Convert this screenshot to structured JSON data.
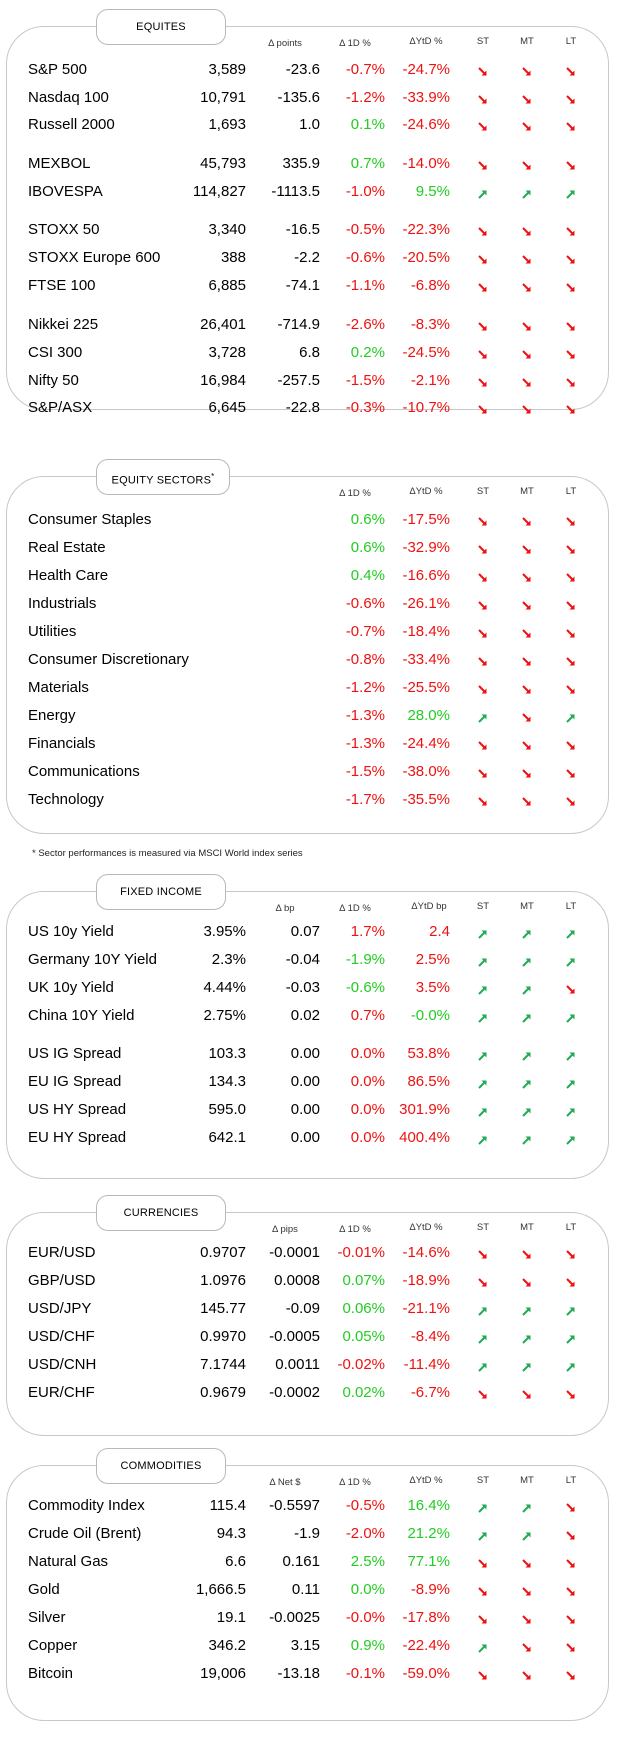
{
  "equities": {
    "title": "EQUITES",
    "headers": {
      "d_points": "Δ points",
      "d_1d": "Δ 1D %",
      "d_ytd": "ΔYtD %",
      "st": "ST",
      "mt": "MT",
      "lt": "LT"
    },
    "rows": [
      {
        "name": "S&P 500",
        "value": "3,589",
        "delta": "-23.6",
        "d1d": "-0.7%",
        "ytd": "-24.7%",
        "st": "down",
        "mt": "down",
        "lt": "down"
      },
      {
        "name": "Nasdaq 100",
        "value": "10,791",
        "delta": "-135.6",
        "d1d": "-1.2%",
        "ytd": "-33.9%",
        "st": "down",
        "mt": "down",
        "lt": "down"
      },
      {
        "name": "Russell 2000",
        "value": "1,693",
        "delta": "1.0",
        "d1d": "0.1%",
        "ytd": "-24.6%",
        "st": "down",
        "mt": "down",
        "lt": "down"
      },
      {
        "name": "MEXBOL",
        "value": "45,793",
        "delta": "335.9",
        "d1d": "0.7%",
        "ytd": "-14.0%",
        "st": "down",
        "mt": "down",
        "lt": "down"
      },
      {
        "name": "IBOVESPA",
        "value": "114,827",
        "delta": "-1113.5",
        "d1d": "-1.0%",
        "ytd": "9.5%",
        "st": "up",
        "mt": "up",
        "lt": "up"
      },
      {
        "name": "STOXX 50",
        "value": "3,340",
        "delta": "-16.5",
        "d1d": "-0.5%",
        "ytd": "-22.3%",
        "st": "down",
        "mt": "down",
        "lt": "down"
      },
      {
        "name": "STOXX Europe 600",
        "value": "388",
        "delta": "-2.2",
        "d1d": "-0.6%",
        "ytd": "-20.5%",
        "st": "down",
        "mt": "down",
        "lt": "down"
      },
      {
        "name": "FTSE 100",
        "value": "6,885",
        "delta": "-74.1",
        "d1d": "-1.1%",
        "ytd": "-6.8%",
        "st": "down",
        "mt": "down",
        "lt": "down"
      },
      {
        "name": "Nikkei 225",
        "value": "26,401",
        "delta": "-714.9",
        "d1d": "-2.6%",
        "ytd": "-8.3%",
        "st": "down",
        "mt": "down",
        "lt": "down"
      },
      {
        "name": "CSI 300",
        "value": "3,728",
        "delta": "6.8",
        "d1d": "0.2%",
        "ytd": "-24.5%",
        "st": "down",
        "mt": "down",
        "lt": "down"
      },
      {
        "name": "Nifty 50",
        "value": "16,984",
        "delta": "-257.5",
        "d1d": "-1.5%",
        "ytd": "-2.1%",
        "st": "down",
        "mt": "down",
        "lt": "down"
      },
      {
        "name": "S&P/ASX",
        "value": "6,645",
        "delta": "-22.8",
        "d1d": "-0.3%",
        "ytd": "-10.7%",
        "st": "down",
        "mt": "down",
        "lt": "down"
      }
    ]
  },
  "sectors": {
    "title": "EQUITY SECTORS",
    "title_mark": "*",
    "headers": {
      "d_1d": "Δ 1D %",
      "d_ytd": "ΔYtD %",
      "st": "ST",
      "mt": "MT",
      "lt": "LT"
    },
    "rows": [
      {
        "name": "Consumer Staples",
        "d1d": "0.6%",
        "ytd": "-17.5%",
        "st": "down",
        "mt": "down",
        "lt": "down"
      },
      {
        "name": "Real Estate",
        "d1d": "0.6%",
        "ytd": "-32.9%",
        "st": "down",
        "mt": "down",
        "lt": "down"
      },
      {
        "name": "Health Care",
        "d1d": "0.4%",
        "ytd": "-16.6%",
        "st": "down",
        "mt": "down",
        "lt": "down"
      },
      {
        "name": "Industrials",
        "d1d": "-0.6%",
        "ytd": "-26.1%",
        "st": "down",
        "mt": "down",
        "lt": "down"
      },
      {
        "name": "Utilities",
        "d1d": "-0.7%",
        "ytd": "-18.4%",
        "st": "down",
        "mt": "down",
        "lt": "down"
      },
      {
        "name": "Consumer Discretionary",
        "d1d": "-0.8%",
        "ytd": "-33.4%",
        "st": "down",
        "mt": "down",
        "lt": "down"
      },
      {
        "name": "Materials",
        "d1d": "-1.2%",
        "ytd": "-25.5%",
        "st": "down",
        "mt": "down",
        "lt": "down"
      },
      {
        "name": "Energy",
        "d1d": "-1.3%",
        "ytd": "28.0%",
        "st": "up",
        "mt": "down",
        "lt": "up"
      },
      {
        "name": "Financials",
        "d1d": "-1.3%",
        "ytd": "-24.4%",
        "st": "down",
        "mt": "down",
        "lt": "down"
      },
      {
        "name": "Communications",
        "d1d": "-1.5%",
        "ytd": "-38.0%",
        "st": "down",
        "mt": "down",
        "lt": "down"
      },
      {
        "name": "Technology",
        "d1d": "-1.7%",
        "ytd": "-35.5%",
        "st": "down",
        "mt": "down",
        "lt": "down"
      }
    ],
    "footnote": "* Sector performances is measured via MSCI World index series"
  },
  "fixed_income": {
    "title": "FIXED INCOME",
    "headers": {
      "d_points": "Δ bp",
      "d_1d": "Δ 1D %",
      "d_ytd": "ΔYtD bp",
      "st": "ST",
      "mt": "MT",
      "lt": "LT"
    },
    "rows": [
      {
        "name": "US 10y Yield",
        "value": "3.95%",
        "delta": "0.07",
        "d1d": "1.7%",
        "ytd": "2.4",
        "st": "up",
        "mt": "up",
        "lt": "up",
        "d1d_color": "neg",
        "ytd_color": "neg"
      },
      {
        "name": "Germany 10Y Yield",
        "value": "2.3%",
        "delta": "-0.04",
        "d1d": "-1.9%",
        "ytd": "2.5%",
        "st": "up",
        "mt": "up",
        "lt": "up",
        "d1d_color": "pos",
        "ytd_color": "neg"
      },
      {
        "name": "UK 10y Yield",
        "value": "4.44%",
        "delta": "-0.03",
        "d1d": "-0.6%",
        "ytd": "3.5%",
        "st": "up",
        "mt": "up",
        "lt": "down",
        "d1d_color": "pos",
        "ytd_color": "neg"
      },
      {
        "name": "China 10Y Yield",
        "value": "2.75%",
        "delta": "0.02",
        "d1d": "0.7%",
        "ytd": "-0.0%",
        "st": "up",
        "mt": "up",
        "lt": "up",
        "d1d_color": "neg",
        "ytd_color": "pos"
      },
      {
        "name": "US IG Spread",
        "value": "103.3",
        "delta": "0.00",
        "d1d": "0.0%",
        "ytd": "53.8%",
        "st": "up",
        "mt": "up",
        "lt": "up",
        "d1d_color": "neg",
        "ytd_color": "neg"
      },
      {
        "name": "EU IG Spread",
        "value": "134.3",
        "delta": "0.00",
        "d1d": "0.0%",
        "ytd": "86.5%",
        "st": "up",
        "mt": "up",
        "lt": "up",
        "d1d_color": "neg",
        "ytd_color": "neg"
      },
      {
        "name": "US HY Spread",
        "value": "595.0",
        "delta": "0.00",
        "d1d": "0.0%",
        "ytd": "301.9%",
        "st": "up",
        "mt": "up",
        "lt": "up",
        "d1d_color": "neg",
        "ytd_color": "neg"
      },
      {
        "name": "EU HY Spread",
        "value": "642.1",
        "delta": "0.00",
        "d1d": "0.0%",
        "ytd": "400.4%",
        "st": "up",
        "mt": "up",
        "lt": "up",
        "d1d_color": "neg",
        "ytd_color": "neg"
      }
    ]
  },
  "currencies": {
    "title": "CURRENCIES",
    "headers": {
      "d_points": "Δ pips",
      "d_1d": "Δ 1D %",
      "d_ytd": "ΔYtD %",
      "st": "ST",
      "mt": "MT",
      "lt": "LT"
    },
    "rows": [
      {
        "name": "EUR/USD",
        "value": "0.9707",
        "delta": "-0.0001",
        "d1d": "-0.01%",
        "ytd": "-14.6%",
        "st": "down",
        "mt": "down",
        "lt": "down"
      },
      {
        "name": "GBP/USD",
        "value": "1.0976",
        "delta": "0.0008",
        "d1d": "0.07%",
        "ytd": "-18.9%",
        "st": "down",
        "mt": "down",
        "lt": "down"
      },
      {
        "name": "USD/JPY",
        "value": "145.77",
        "delta": "-0.09",
        "d1d": "0.06%",
        "ytd": "-21.1%",
        "st": "up",
        "mt": "up",
        "lt": "up"
      },
      {
        "name": "USD/CHF",
        "value": "0.9970",
        "delta": "-0.0005",
        "d1d": "0.05%",
        "ytd": "-8.4%",
        "st": "up",
        "mt": "up",
        "lt": "up"
      },
      {
        "name": "USD/CNH",
        "value": "7.1744",
        "delta": "0.0011",
        "d1d": "-0.02%",
        "ytd": "-11.4%",
        "st": "up",
        "mt": "up",
        "lt": "up"
      },
      {
        "name": "EUR/CHF",
        "value": "0.9679",
        "delta": "-0.0002",
        "d1d": "0.02%",
        "ytd": "-6.7%",
        "st": "down",
        "mt": "down",
        "lt": "down"
      }
    ]
  },
  "commodities": {
    "title": "COMMODITIES",
    "headers": {
      "d_points": "Δ Net $",
      "d_1d": "Δ 1D %",
      "d_ytd": "ΔYtD %",
      "st": "ST",
      "mt": "MT",
      "lt": "LT"
    },
    "rows": [
      {
        "name": "Commodity Index",
        "value": "115.4",
        "delta": "-0.5597",
        "d1d": "-0.5%",
        "ytd": "16.4%",
        "st": "up",
        "mt": "up",
        "lt": "down"
      },
      {
        "name": "Crude Oil (Brent)",
        "value": "94.3",
        "delta": "-1.9",
        "d1d": "-2.0%",
        "ytd": "21.2%",
        "st": "up",
        "mt": "up",
        "lt": "down"
      },
      {
        "name": "Natural Gas",
        "value": "6.6",
        "delta": "0.161",
        "d1d": "2.5%",
        "ytd": "77.1%",
        "st": "down",
        "mt": "down",
        "lt": "down"
      },
      {
        "name": "Gold",
        "value": "1,666.5",
        "delta": "0.11",
        "d1d": "0.0%",
        "ytd": "-8.9%",
        "st": "down",
        "mt": "down",
        "lt": "down"
      },
      {
        "name": "Silver",
        "value": "19.1",
        "delta": "-0.0025",
        "d1d": "-0.0%",
        "ytd": "-17.8%",
        "st": "down",
        "mt": "down",
        "lt": "down"
      },
      {
        "name": "Copper",
        "value": "346.2",
        "delta": "3.15",
        "d1d": "0.9%",
        "ytd": "-22.4%",
        "st": "up",
        "mt": "down",
        "lt": "down"
      },
      {
        "name": "Bitcoin",
        "value": "19,006",
        "delta": "-13.18",
        "d1d": "-0.1%",
        "ytd": "-59.0%",
        "st": "down",
        "mt": "down",
        "lt": "down"
      }
    ]
  },
  "colors": {
    "positive": "#22cc22",
    "negative": "#ee1111",
    "border": "#c8c8c8"
  }
}
